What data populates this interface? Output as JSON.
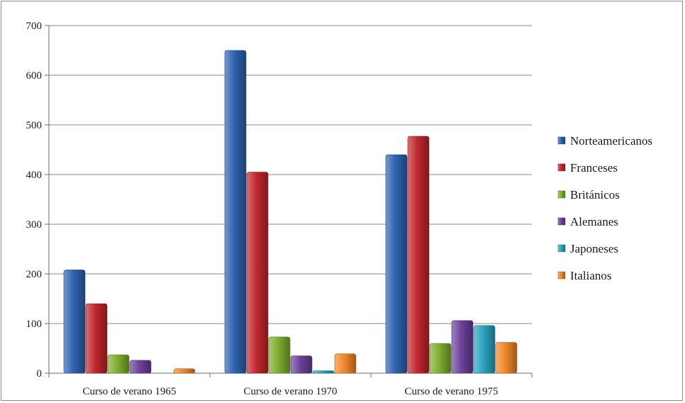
{
  "chart_data": {
    "type": "bar",
    "categories": [
      "Curso de verano 1965",
      "Curso de verano 1970",
      "Curso de verano 1975"
    ],
    "series": [
      {
        "name": "Norteamericanos",
        "color": "#2e62b0",
        "values": [
          208,
          650,
          440
        ]
      },
      {
        "name": "Franceses",
        "color": "#c0272d",
        "values": [
          140,
          405,
          477
        ]
      },
      {
        "name": "Británicos",
        "color": "#7fad2f",
        "values": [
          37,
          73,
          60
        ]
      },
      {
        "name": "Alemanes",
        "color": "#6a419a",
        "values": [
          26,
          35,
          106
        ]
      },
      {
        "name": "Japoneses",
        "color": "#2aa3c0",
        "values": [
          0,
          5,
          96
        ]
      },
      {
        "name": "Italianos",
        "color": "#f0872a",
        "values": [
          9,
          39,
          62
        ]
      }
    ],
    "ylim": [
      0,
      700
    ],
    "yticks": [
      0,
      100,
      200,
      300,
      400,
      500,
      600,
      700
    ],
    "grid": true,
    "legend_position": "right"
  }
}
